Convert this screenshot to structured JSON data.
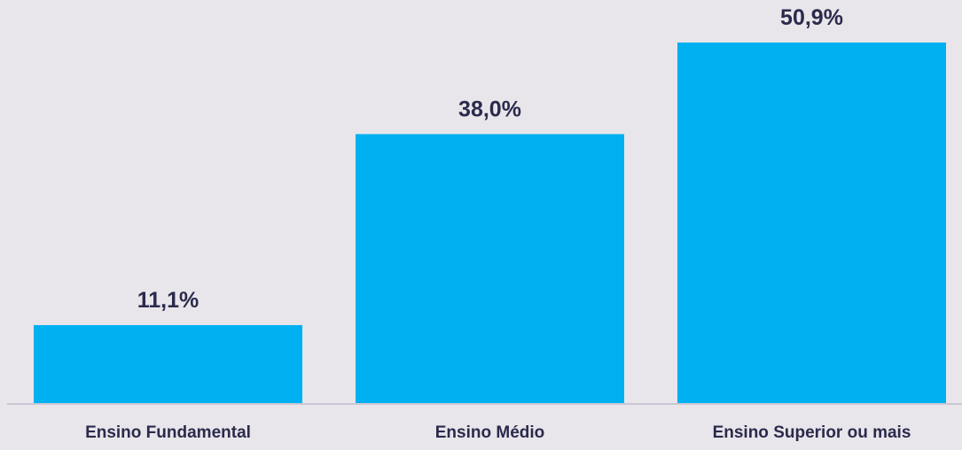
{
  "chart_data": {
    "type": "bar",
    "categories": [
      "Ensino Fundamental",
      "Ensino Médio",
      "Ensino Superior ou mais"
    ],
    "values": [
      11.1,
      38.0,
      50.9
    ],
    "value_labels": [
      "11,1%",
      "38,0%",
      "50,9%"
    ],
    "title": "",
    "xlabel": "",
    "ylabel": "",
    "ylim": [
      0,
      50.9
    ],
    "grid": false,
    "legend": "none",
    "colors": {
      "bar": "#00b0f0",
      "label_text": "#2b2a4c",
      "baseline": "#c9c7d3",
      "background": "#e8e6ea"
    }
  }
}
